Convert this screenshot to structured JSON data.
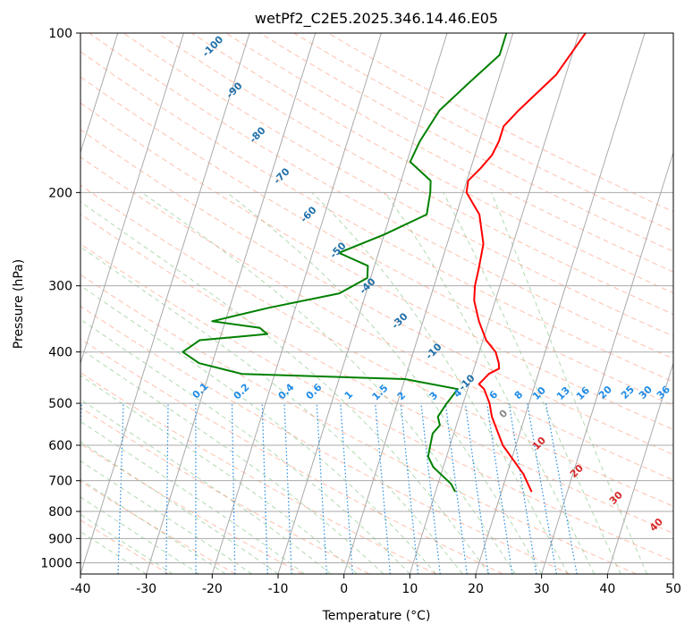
{
  "chart_data": {
    "type": "line",
    "subtype": "skew-t log-p",
    "title": "wetPf2_C2E5.2025.346.14.46.E05",
    "xlabel": "Temperature (°C)",
    "ylabel": "Pressure (hPa)",
    "xlim": [
      -40,
      50
    ],
    "ylim": [
      1050,
      100
    ],
    "y_scale": "log",
    "x_ticks": [
      -40,
      -30,
      -20,
      -10,
      0,
      10,
      20,
      30,
      40,
      50
    ],
    "y_ticks": [
      100,
      200,
      300,
      400,
      500,
      600,
      700,
      800,
      900,
      1000
    ],
    "grid": true,
    "series": [
      {
        "color": "#ff0000",
        "x": [
          24.6,
          22.5,
          18.0,
          15.0,
          14.0,
          12.5,
          11.5,
          12.5,
          13.8,
          13.5,
          12.5,
          10.5,
          8.5,
          6.8,
          6.2,
          6.0,
          5.5,
          3.5,
          0.5,
          0.2,
          1.5,
          2.6,
          3.0,
          3.0,
          4.5,
          8.5,
          11.0
        ],
        "y": [
          735,
          680,
          600,
          530,
          500,
          470,
          460,
          440,
          430,
          420,
          400,
          380,
          350,
          320,
          300,
          280,
          250,
          220,
          200,
          190,
          180,
          170,
          160,
          150,
          140,
          120,
          100
        ]
      },
      {
        "color": "#008000",
        "x": [
          13.0,
          12.0,
          8.5,
          7.2,
          7.0,
          6.8,
          7.5,
          6.8,
          7.5,
          8.5,
          0.0,
          -25.0,
          -32.0,
          -35.0,
          -33.0,
          -23.0,
          -24.5,
          -32.0,
          -24.0,
          -14.0,
          -10.5,
          -11.0,
          -16.0,
          -10.0,
          -4.5,
          -5.0,
          -5.5,
          -9.5,
          -9.0,
          -7.5,
          -4.5,
          -1.0,
          -1.0
        ],
        "y": [
          735,
          710,
          660,
          630,
          600,
          570,
          550,
          530,
          500,
          470,
          450,
          440,
          420,
          400,
          380,
          370,
          360,
          350,
          330,
          310,
          290,
          275,
          260,
          240,
          220,
          200,
          190,
          175,
          160,
          140,
          125,
          110,
          100
        ]
      }
    ],
    "reference_lines": {
      "dry_adiabat_labels": [
        "-100",
        "-90",
        "-80",
        "-70",
        "-60",
        "-50",
        "-40",
        "-30",
        "-10",
        "-10"
      ],
      "mixing_ratio_labels": [
        "0.1",
        "0.2",
        "0.4",
        "0.6",
        "1",
        "1.5",
        "2",
        "3",
        "4",
        "6",
        "8",
        "10",
        "13",
        "16",
        "20",
        "25",
        "30",
        "36"
      ],
      "moist_adiabat_labels": [
        "0",
        "10",
        "20",
        "30",
        "40"
      ]
    }
  }
}
